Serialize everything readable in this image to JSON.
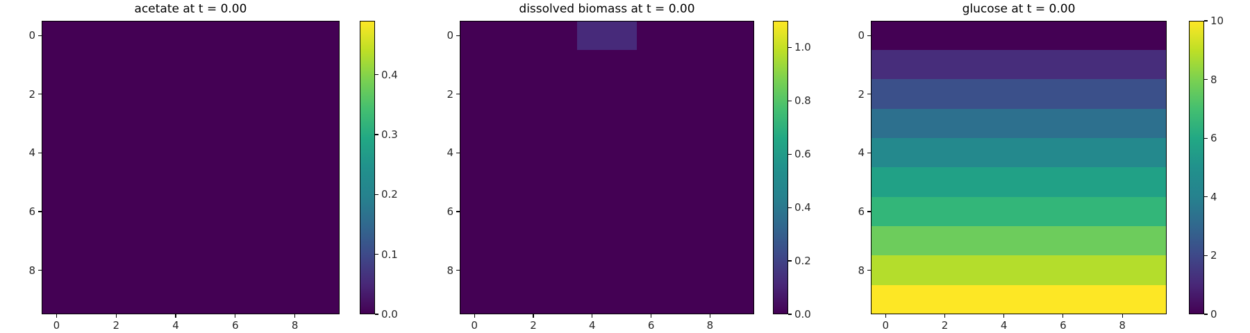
{
  "figure": {
    "background_color": "#ffffff",
    "text_color": "#262626",
    "heatmap_zero_color": "#440154",
    "colormap": "viridis",
    "viridis_stops": [
      "#440154",
      "#482878",
      "#3e4989",
      "#31688e",
      "#26828e",
      "#21918c",
      "#22a884",
      "#44bf70",
      "#7ad151",
      "#bddf26",
      "#fde725"
    ]
  },
  "chart_data": [
    {
      "type": "heatmap",
      "title": "acetate at t = 0.00",
      "species": "acetate",
      "time_label": "0.00",
      "grid_rows": 10,
      "grid_cols": 10,
      "x_tick_labels": [
        "0",
        "2",
        "4",
        "6",
        "8"
      ],
      "x_tick_values": [
        0,
        2,
        4,
        6,
        8
      ],
      "y_tick_labels": [
        "0",
        "2",
        "4",
        "6",
        "8"
      ],
      "y_tick_values": [
        0,
        2,
        4,
        6,
        8
      ],
      "values_description": "uniform grid, every cell equals 0.0",
      "uniform_value": 0.0,
      "uniform_color": "#440154",
      "colorbar": {
        "vmin": 0.0,
        "vmax": 0.49,
        "tick_labels": [
          "0.0",
          "0.1",
          "0.2",
          "0.3",
          "0.4"
        ],
        "tick_values": [
          0.0,
          0.1,
          0.2,
          0.3,
          0.4
        ]
      }
    },
    {
      "type": "heatmap",
      "title": "dissolved biomass at t = 0.00",
      "species": "dissolved biomass",
      "time_label": "0.00",
      "grid_rows": 10,
      "grid_cols": 10,
      "x_tick_labels": [
        "0",
        "2",
        "4",
        "6",
        "8"
      ],
      "x_tick_values": [
        0,
        2,
        4,
        6,
        8
      ],
      "y_tick_labels": [
        "0",
        "2",
        "4",
        "6",
        "8"
      ],
      "y_tick_values": [
        0,
        2,
        4,
        6,
        8
      ],
      "values_description": "all cells 0.0 except two seed cells at row 0, columns 4 and 5, value about 0.11",
      "uniform_value": 0.0,
      "uniform_color": "#440154",
      "highlight_color": "#472a7a",
      "highlight_cells": [
        {
          "row": 0,
          "col": 4,
          "value": 0.11
        },
        {
          "row": 0,
          "col": 5,
          "value": 0.11
        }
      ],
      "colorbar": {
        "vmin": 0.0,
        "vmax": 1.1,
        "tick_labels": [
          "0.0",
          "0.2",
          "0.4",
          "0.6",
          "0.8",
          "1.0"
        ],
        "tick_values": [
          0.0,
          0.2,
          0.4,
          0.6,
          0.8,
          1.0
        ]
      }
    },
    {
      "type": "heatmap",
      "title": "glucose at t = 0.00",
      "species": "glucose",
      "time_label": "0.00",
      "grid_rows": 10,
      "grid_cols": 10,
      "x_tick_labels": [
        "0",
        "2",
        "4",
        "6",
        "8"
      ],
      "x_tick_values": [
        0,
        2,
        4,
        6,
        8
      ],
      "y_tick_labels": [
        "0",
        "2",
        "4",
        "6",
        "8"
      ],
      "y_tick_values": [
        0,
        2,
        4,
        6,
        8
      ],
      "values_description": "horizontal bands, linear vertical gradient: row i value = i * 10/9 from top (0) to bottom (10)",
      "row_values": [
        0.0,
        1.11,
        2.22,
        3.33,
        4.44,
        5.56,
        6.67,
        7.78,
        8.89,
        10.0
      ],
      "row_colors": [
        "#440154",
        "#472d7b",
        "#3b508a",
        "#2d708e",
        "#24898d",
        "#21a186",
        "#33b679",
        "#6dcc5c",
        "#b4dd2c",
        "#fde725"
      ],
      "colorbar": {
        "vmin": 0,
        "vmax": 10,
        "tick_labels": [
          "0",
          "2",
          "4",
          "6",
          "8",
          "10"
        ],
        "tick_values": [
          0,
          2,
          4,
          6,
          8,
          10
        ]
      }
    }
  ]
}
